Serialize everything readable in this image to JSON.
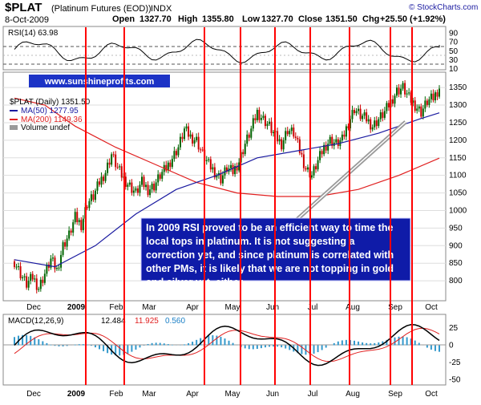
{
  "header": {
    "symbol": "$PLAT",
    "name": "(Platinum Futures (EOD))",
    "exchange": "INDX",
    "copyright": "© StockCharts.com",
    "date": "8-Oct-2009",
    "open_label": "Open",
    "open": "1327.70",
    "high_label": "High",
    "high": "1355.80",
    "low_label": "Low",
    "low": "1327.70",
    "close_label": "Close",
    "close": "1351.50",
    "chg_label": "Chg",
    "chg": "+25.50 (+1.92%)"
  },
  "colors": {
    "price": "#000000",
    "ma50": "#1a1aa0",
    "ma200": "#e02020",
    "red_line": "#ff0000",
    "panel_bg": "#ffffff",
    "chart_bg": "#e8e8e8",
    "watermark_bg": "#1c33c6",
    "note_bg": "#0f1ba8",
    "macd_hist": "#3399cc"
  },
  "watermark": "www.sunshineprofits.com",
  "annotation": "In 2009 RSI proved to be an efficient way to time the local tops in platinum. It is not suggesting a correction yet, and since platinum is correlated with other PMs, it is likely that we are not topping in gold and silver yet, either.",
  "chart_data": [
    {
      "panel": "rsi",
      "type": "line",
      "title": "RSI(14) 63.98",
      "y_ticks": [
        10,
        30,
        50,
        70,
        90
      ],
      "y_range": [
        10,
        100
      ],
      "reference_lines": [
        30,
        70
      ],
      "last_value": 63.98
    },
    {
      "panel": "price",
      "type": "candlestick",
      "title": "$PLAT (Daily) 1351.50",
      "legend": [
        {
          "name": "MA(50) 1277.95",
          "color": "#1a1aa0"
        },
        {
          "name": "MA(200) 1149.36",
          "color": "#e02020"
        },
        {
          "name": "Volume undef",
          "color": "#808080"
        }
      ],
      "y_ticks": [
        800,
        850,
        900,
        950,
        1000,
        1050,
        1100,
        1150,
        1200,
        1250,
        1300,
        1350
      ],
      "y_range": [
        750,
        1380
      ],
      "x_labels": [
        "Dec",
        "2009",
        "Feb",
        "Mar",
        "Apr",
        "May",
        "Jun",
        "Jul",
        "Aug",
        "Sep",
        "Oct"
      ],
      "price_path": [
        [
          0,
          855
        ],
        [
          3,
          820
        ],
        [
          6,
          790
        ],
        [
          9,
          810
        ],
        [
          12,
          780
        ],
        [
          15,
          820
        ],
        [
          18,
          860
        ],
        [
          21,
          830
        ],
        [
          24,
          900
        ],
        [
          27,
          930
        ],
        [
          30,
          980
        ],
        [
          33,
          960
        ],
        [
          36,
          1020
        ],
        [
          39,
          1040
        ],
        [
          42,
          1080
        ],
        [
          45,
          1110
        ],
        [
          48,
          1160
        ],
        [
          51,
          1120
        ],
        [
          54,
          1090
        ],
        [
          57,
          1070
        ],
        [
          60,
          1050
        ],
        [
          63,
          1080
        ],
        [
          66,
          1060
        ],
        [
          69,
          1070
        ],
        [
          72,
          1100
        ],
        [
          75,
          1120
        ],
        [
          78,
          1150
        ],
        [
          81,
          1180
        ],
        [
          84,
          1230
        ],
        [
          87,
          1210
        ],
        [
          90,
          1200
        ],
        [
          93,
          1160
        ],
        [
          96,
          1130
        ],
        [
          99,
          1110
        ],
        [
          102,
          1090
        ],
        [
          105,
          1120
        ],
        [
          108,
          1110
        ],
        [
          111,
          1140
        ],
        [
          114,
          1190
        ],
        [
          117,
          1230
        ],
        [
          120,
          1280
        ],
        [
          123,
          1260
        ],
        [
          126,
          1240
        ],
        [
          129,
          1210
        ],
        [
          132,
          1190
        ],
        [
          135,
          1230
        ],
        [
          138,
          1220
        ],
        [
          141,
          1170
        ],
        [
          144,
          1120
        ],
        [
          147,
          1100
        ],
        [
          150,
          1140
        ],
        [
          153,
          1180
        ],
        [
          156,
          1200
        ],
        [
          159,
          1190
        ],
        [
          162,
          1200
        ],
        [
          165,
          1250
        ],
        [
          168,
          1290
        ],
        [
          171,
          1270
        ],
        [
          174,
          1260
        ],
        [
          177,
          1240
        ],
        [
          180,
          1260
        ],
        [
          183,
          1280
        ],
        [
          186,
          1310
        ],
        [
          189,
          1340
        ],
        [
          192,
          1350
        ],
        [
          195,
          1320
        ],
        [
          198,
          1300
        ],
        [
          201,
          1280
        ],
        [
          204,
          1310
        ],
        [
          207,
          1320
        ],
        [
          210,
          1350
        ]
      ],
      "ma50": [
        [
          0,
          860
        ],
        [
          20,
          840
        ],
        [
          40,
          900
        ],
        [
          60,
          990
        ],
        [
          80,
          1060
        ],
        [
          100,
          1100
        ],
        [
          120,
          1150
        ],
        [
          140,
          1170
        ],
        [
          160,
          1190
        ],
        [
          180,
          1220
        ],
        [
          200,
          1260
        ],
        [
          210,
          1278
        ]
      ],
      "ma200": [
        [
          0,
          1320
        ],
        [
          15,
          1300
        ],
        [
          30,
          1240
        ],
        [
          50,
          1180
        ],
        [
          70,
          1130
        ],
        [
          90,
          1080
        ],
        [
          110,
          1050
        ],
        [
          130,
          1040
        ],
        [
          150,
          1040
        ],
        [
          170,
          1060
        ],
        [
          190,
          1100
        ],
        [
          210,
          1149
        ]
      ]
    },
    {
      "panel": "macd",
      "type": "line",
      "title": "MACD(12,26,9) 12.484, 11.925, 0.560",
      "series_names": [
        "MACD",
        "Signal",
        "Histogram"
      ],
      "y_ticks": [
        -50,
        -25,
        0,
        25
      ],
      "y_range": [
        -55,
        40
      ],
      "values_last": [
        12.484,
        11.925,
        0.56
      ]
    }
  ],
  "title_line": {
    "macd_label": "MACD(12,26,9)",
    "macd_v1": "12.484",
    "macd_v2": "11.925",
    "macd_v3": "0.560"
  },
  "red_line_dates": [
    "Dec-late",
    "2009-Jan",
    "Feb",
    "Apr",
    "May",
    "Jun",
    "Jul",
    "Aug",
    "Sep-mid",
    "Oct"
  ]
}
